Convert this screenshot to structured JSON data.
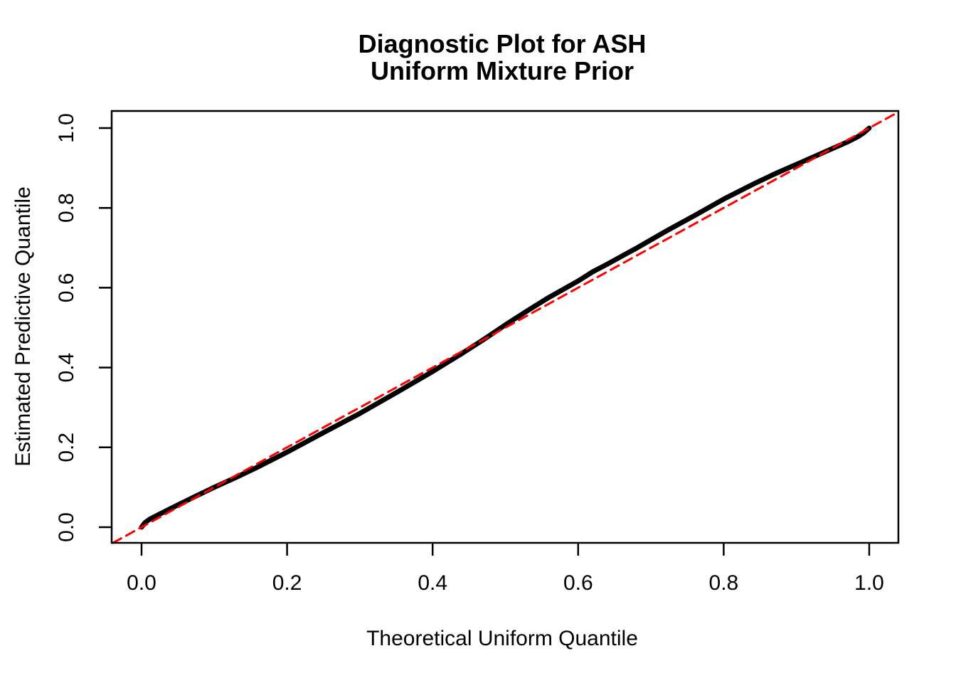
{
  "figure": {
    "background": "#FFFFFF",
    "frame_color": "#000000"
  },
  "chart_data": {
    "type": "line",
    "subtype": "qq-diagnostic-plot",
    "title": "Diagnostic Plot for ASH\nUniform Mixture Prior",
    "title_lines": [
      "Diagnostic Plot for ASH",
      "Uniform Mixture Prior"
    ],
    "xlabel": "Theoretical Uniform Quantile",
    "ylabel": "Estimated Predictive Quantile",
    "xlim": [
      -0.04,
      1.04
    ],
    "ylim": [
      -0.04,
      1.04
    ],
    "grid": false,
    "legend": null,
    "x_ticks": {
      "values": [
        0.0,
        0.2,
        0.4,
        0.6,
        0.8,
        1.0
      ],
      "labels": [
        "0.0",
        "0.2",
        "0.4",
        "0.6",
        "0.8",
        "1.0"
      ]
    },
    "y_ticks": {
      "values": [
        0.0,
        0.2,
        0.4,
        0.6,
        0.8,
        1.0
      ],
      "labels": [
        "0.0",
        "0.2",
        "0.4",
        "0.6",
        "0.8",
        "1.0"
      ]
    },
    "series": [
      {
        "name": "estimated-predictive-quantiles",
        "color": "#000000",
        "style": "solid",
        "line_width": 7,
        "points": [
          [
            0.0,
            0.0
          ],
          [
            0.005,
            0.012
          ],
          [
            0.012,
            0.021
          ],
          [
            0.025,
            0.033
          ],
          [
            0.05,
            0.056
          ],
          [
            0.075,
            0.078
          ],
          [
            0.1,
            0.1
          ],
          [
            0.13,
            0.125
          ],
          [
            0.16,
            0.151
          ],
          [
            0.2,
            0.188
          ],
          [
            0.25,
            0.237
          ],
          [
            0.3,
            0.285
          ],
          [
            0.35,
            0.337
          ],
          [
            0.4,
            0.39
          ],
          [
            0.44,
            0.435
          ],
          [
            0.47,
            0.47
          ],
          [
            0.5,
            0.507
          ],
          [
            0.53,
            0.542
          ],
          [
            0.56,
            0.576
          ],
          [
            0.6,
            0.617
          ],
          [
            0.62,
            0.64
          ],
          [
            0.64,
            0.659
          ],
          [
            0.68,
            0.699
          ],
          [
            0.72,
            0.741
          ],
          [
            0.76,
            0.781
          ],
          [
            0.8,
            0.822
          ],
          [
            0.84,
            0.859
          ],
          [
            0.87,
            0.885
          ],
          [
            0.9,
            0.909
          ],
          [
            0.925,
            0.929
          ],
          [
            0.95,
            0.949
          ],
          [
            0.97,
            0.965
          ],
          [
            0.985,
            0.979
          ],
          [
            0.993,
            0.989
          ],
          [
            1.0,
            1.0
          ]
        ]
      },
      {
        "name": "identity-reference-line",
        "color": "#FF0000",
        "style": "dashed",
        "line_width": 3,
        "dash": [
          13,
          8
        ],
        "points": [
          [
            -0.0392,
            -0.0392
          ],
          [
            1.0401,
            1.0401
          ]
        ]
      }
    ]
  }
}
